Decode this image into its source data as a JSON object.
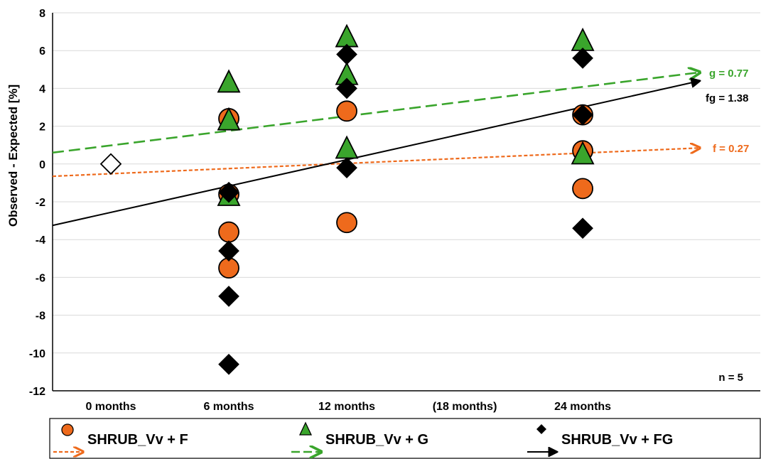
{
  "chart_data": {
    "type": "scatter",
    "ylabel": "Observed - Expected [%]",
    "xlabel": "",
    "categories": [
      "0 months",
      "6 months",
      "12 months",
      "(18 months)",
      "24 months"
    ],
    "ylim": [
      -12,
      8
    ],
    "yticks": [
      8,
      6,
      4,
      2,
      0,
      -2,
      -4,
      -6,
      -8,
      -10,
      -12
    ],
    "grid": true,
    "baseline": {
      "x": 0,
      "y": 0
    },
    "series": [
      {
        "name": "SHRUB_Vv + F",
        "marker": "circle",
        "color": "#ee6a1c",
        "points": [
          {
            "x": 6,
            "y": 2.4
          },
          {
            "x": 6,
            "y": -1.6
          },
          {
            "x": 6,
            "y": -3.6
          },
          {
            "x": 6,
            "y": -5.5
          },
          {
            "x": 12,
            "y": 2.8
          },
          {
            "x": 12,
            "y": -3.1
          },
          {
            "x": 24,
            "y": 2.6
          },
          {
            "x": 24,
            "y": 0.7
          },
          {
            "x": 24,
            "y": -1.3
          }
        ],
        "trend": {
          "label": "f = 0.27",
          "y_start": -0.65,
          "y_end": 0.85,
          "style": "dotted"
        }
      },
      {
        "name": "SHRUB_Vv + G",
        "marker": "triangle",
        "color": "#3aa52c",
        "points": [
          {
            "x": 6,
            "y": 4.3
          },
          {
            "x": 6,
            "y": 2.3
          },
          {
            "x": 6,
            "y": -1.7
          },
          {
            "x": 12,
            "y": 6.7
          },
          {
            "x": 12,
            "y": 4.7
          },
          {
            "x": 12,
            "y": 0.8
          },
          {
            "x": 24,
            "y": 6.5
          },
          {
            "x": 24,
            "y": 0.5
          }
        ],
        "trend": {
          "label": "g = 0.77",
          "y_start": 0.6,
          "y_end": 4.85,
          "style": "dashed"
        }
      },
      {
        "name": "SHRUB_Vv + FG",
        "marker": "diamond",
        "color": "#000000",
        "points": [
          {
            "x": 6,
            "y": -1.5
          },
          {
            "x": 6,
            "y": -4.6
          },
          {
            "x": 6,
            "y": -7.0
          },
          {
            "x": 6,
            "y": -10.6
          },
          {
            "x": 12,
            "y": 5.8
          },
          {
            "x": 12,
            "y": 4.0
          },
          {
            "x": 12,
            "y": -0.2
          },
          {
            "x": 24,
            "y": 5.6
          },
          {
            "x": 24,
            "y": 2.6
          },
          {
            "x": 24,
            "y": -3.4
          }
        ],
        "trend": {
          "label": "fg = 1.38",
          "y_start": -3.25,
          "y_end": 4.4,
          "style": "solid"
        }
      }
    ],
    "annotation": "n = 5"
  }
}
